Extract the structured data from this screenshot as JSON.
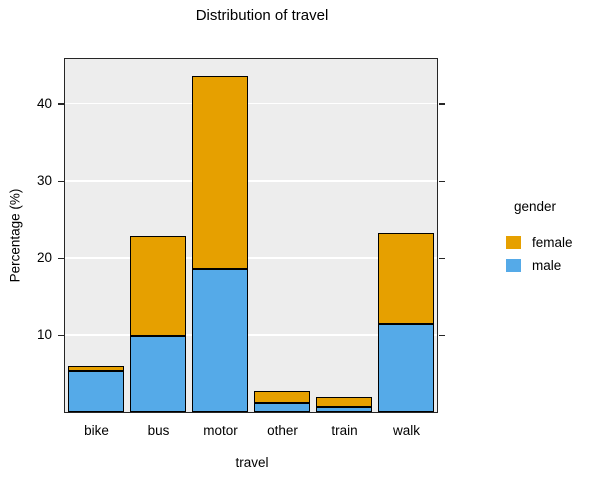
{
  "window": {
    "background": "#FFFFFF"
  },
  "chart_data": {
    "type": "bar",
    "stacked": true,
    "title": "Distribution of travel",
    "xlabel": "travel",
    "ylabel": "Percentage (%)",
    "categories": [
      "bike",
      "bus",
      "motor",
      "other",
      "train",
      "walk"
    ],
    "series": [
      {
        "name": "female",
        "color": "#E6A000",
        "values": [
          0.7,
          12.9,
          25.0,
          1.5,
          1.3,
          11.8
        ]
      },
      {
        "name": "male",
        "color": "#55AAE8",
        "values": [
          5.3,
          9.9,
          18.6,
          1.2,
          0.6,
          11.4
        ]
      }
    ],
    "stack_order_bottom_to_top": [
      "male",
      "female"
    ],
    "yticks": [
      10,
      20,
      30,
      40
    ],
    "ylim": [
      0,
      45.8
    ],
    "grid": "horizontal",
    "legend": {
      "title": "gender",
      "position": "right",
      "entries": [
        "female",
        "male"
      ]
    },
    "panel_background": "#EDEDED",
    "gridline_color": "#FFFFFF",
    "bar_border_color": "#000000",
    "axis_color": "#262626"
  }
}
